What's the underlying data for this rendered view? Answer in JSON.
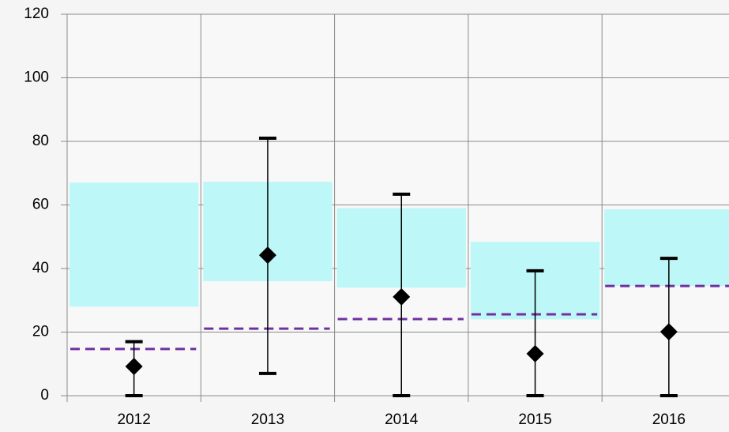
{
  "chart_data": {
    "type": "range-errorbar",
    "categories": [
      "2012",
      "2013",
      "2014",
      "2015",
      "2016"
    ],
    "box_low": [
      28,
      36,
      34,
      24,
      34.5
    ],
    "box_high": [
      67,
      67.3,
      59,
      48.4,
      58.6
    ],
    "box_color": "#bdf7f7",
    "target": [
      14.7,
      21.1,
      24.1,
      25.6,
      34.5
    ],
    "target_color": "#7030a0",
    "values": [
      9.2,
      44.2,
      31.1,
      13.2,
      20.1
    ],
    "err_low": [
      0,
      7,
      0,
      0,
      0
    ],
    "err_high": [
      17,
      81,
      63.4,
      39.3,
      43.2
    ],
    "color": "#000000",
    "ylim": [
      0,
      120
    ],
    "yticks": [
      0,
      20,
      40,
      60,
      80,
      100,
      120
    ],
    "grid": true
  }
}
